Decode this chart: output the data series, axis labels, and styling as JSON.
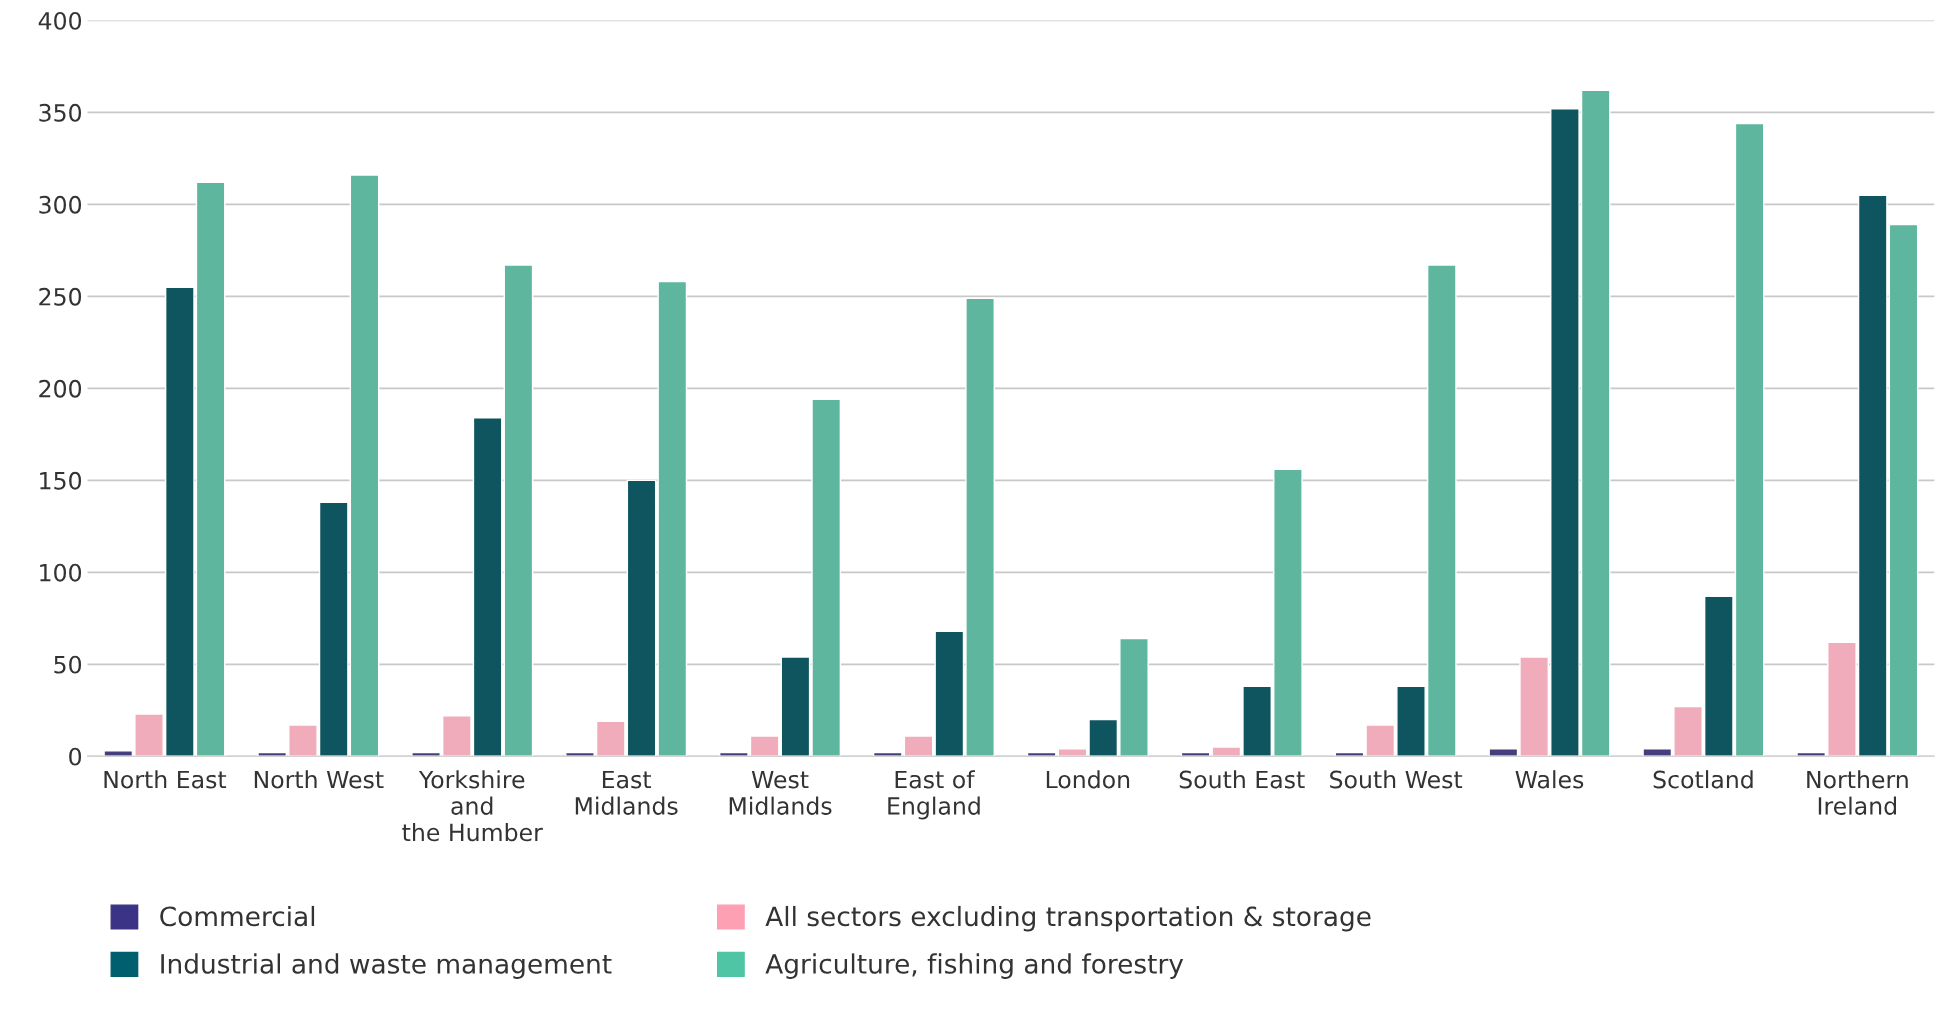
{
  "chart_data": {
    "type": "bar",
    "categories": [
      "North East",
      "North West",
      "Yorkshire\nand\nthe Humber",
      "East\nMidlands",
      "West\nMidlands",
      "East of\nEngland",
      "London",
      "South East",
      "South West",
      "Wales",
      "Scotland",
      "Northern\nIreland"
    ],
    "series": [
      {
        "name": "Commercial",
        "color": "#3b3486",
        "values": [
          3,
          2,
          2,
          2,
          2,
          2,
          2,
          2,
          2,
          4,
          4,
          2
        ]
      },
      {
        "name": "All sectors excluding transportation & storage",
        "color": "#fda0b4",
        "values": [
          23,
          17,
          22,
          19,
          11,
          11,
          4,
          5,
          17,
          54,
          27,
          62
        ]
      },
      {
        "name": "Industrial and waste management",
        "color": "#005f6e",
        "values": [
          255,
          138,
          184,
          150,
          54,
          68,
          20,
          38,
          38,
          352,
          87,
          305
        ]
      },
      {
        "name": "Agriculture, fishing and forestry",
        "color": "#4fc5a5",
        "values": [
          312,
          316,
          267,
          258,
          194,
          249,
          64,
          156,
          267,
          362,
          344,
          289
        ]
      }
    ],
    "ylim": [
      0,
      400
    ],
    "yticks": [
      0,
      50,
      100,
      150,
      200,
      250,
      300,
      350,
      400
    ],
    "grid": "y",
    "legend": "bottom"
  }
}
